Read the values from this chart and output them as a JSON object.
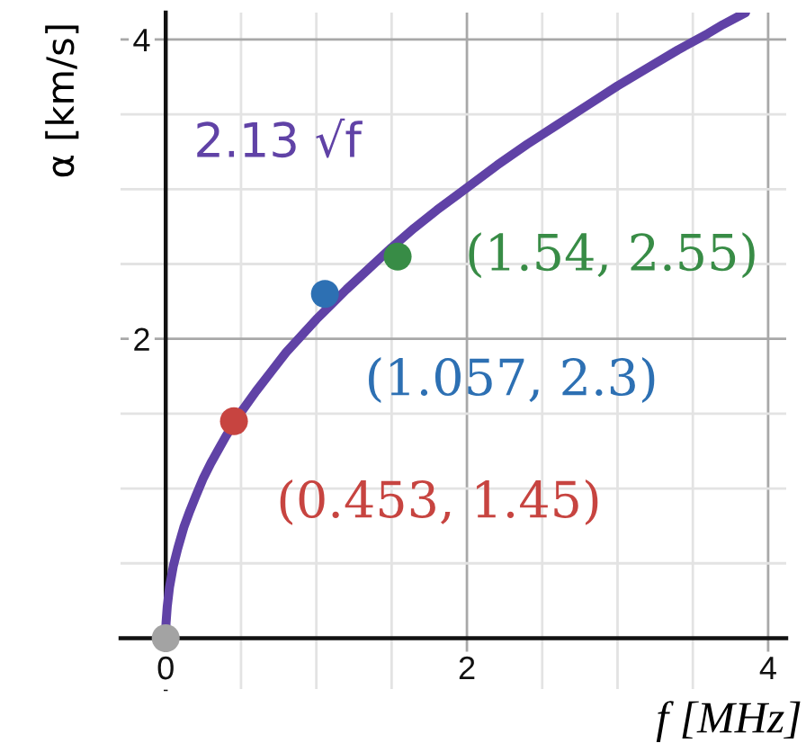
{
  "chart_data": {
    "type": "scatter",
    "xlabel": "f [MHz]",
    "ylabel": "α [km/s]",
    "xlim": [
      -0.3,
      4.12
    ],
    "ylim": [
      -0.34,
      4.18
    ],
    "xticks": [
      0,
      {
        "value": 0.5,
        "label": null
      },
      {
        "value": 1,
        "label": null
      },
      {
        "value": 1.5,
        "label": null
      },
      2,
      {
        "value": 2.5,
        "label": null
      },
      {
        "value": 3,
        "label": null
      },
      {
        "value": 3.5,
        "label": null
      },
      4
    ],
    "yticks": [
      {
        "value": 0,
        "label": null
      },
      {
        "value": 0.5,
        "label": null
      },
      {
        "value": 1,
        "label": null
      },
      {
        "value": 1.5,
        "label": null
      },
      2,
      {
        "value": 2.5,
        "label": null
      },
      {
        "value": 3,
        "label": null
      },
      {
        "value": 3.5,
        "label": null
      },
      4
    ],
    "grid": true,
    "marker": "circle",
    "line_style": "solid",
    "series": [
      {
        "name": "2.13 √f",
        "type": "line",
        "marker": "none",
        "color": "#6042a6",
        "x": [
          0,
          0.002,
          0.01,
          0.025,
          0.05,
          0.08,
          0.12,
          0.16,
          0.2,
          0.25,
          0.3,
          0.35,
          0.4,
          0.5,
          0.6,
          0.7,
          0.8,
          0.9,
          1.0,
          1.1,
          1.2,
          1.35,
          1.5,
          1.65,
          1.8,
          2.0,
          2.2,
          2.4,
          2.6,
          2.8,
          3.0,
          3.2,
          3.4,
          3.6,
          3.7,
          3.85
        ],
        "values": [
          0,
          0.1,
          0.21,
          0.34,
          0.48,
          0.6,
          0.74,
          0.85,
          0.95,
          1.07,
          1.17,
          1.26,
          1.35,
          1.51,
          1.65,
          1.78,
          1.91,
          2.02,
          2.13,
          2.23,
          2.33,
          2.47,
          2.61,
          2.74,
          2.86,
          3.01,
          3.16,
          3.3,
          3.43,
          3.56,
          3.69,
          3.81,
          3.93,
          4.04,
          4.1,
          4.18
        ]
      },
      {
        "color": "#a3a3a3",
        "x": [
          0
        ],
        "values": [
          0
        ]
      },
      {
        "color": "#c74440",
        "x": [
          0.453
        ],
        "values": [
          1.45
        ],
        "value_labels": [
          "(0.453, 1.45)"
        ]
      },
      {
        "color": "#2d70b3",
        "x": [
          1.057
        ],
        "values": [
          2.3
        ],
        "value_labels": [
          "(1.057, 2.3)"
        ]
      },
      {
        "color": "#388c46",
        "x": [
          1.54
        ],
        "values": [
          2.55
        ],
        "value_labels": [
          "(1.54, 2.55)"
        ]
      }
    ]
  }
}
